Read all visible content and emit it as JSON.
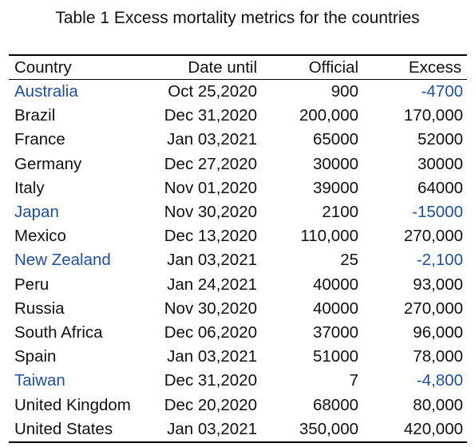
{
  "caption": "Table 1 Excess mortality metrics for the countries",
  "colors": {
    "text": "#111111",
    "highlight": "#1f4e9c",
    "rule": "#000000"
  },
  "table": {
    "headers": {
      "country": "Country",
      "date": "Date until",
      "official": "Official",
      "excess": "Excess"
    },
    "rows": [
      {
        "country": "Australia",
        "date": "Oct 25,2020",
        "official": "900",
        "excess": "-4700",
        "highlight": true
      },
      {
        "country": "Brazil",
        "date": "Dec 31,2020",
        "official": "200,000",
        "excess": "170,000",
        "highlight": false
      },
      {
        "country": "France",
        "date": "Jan 03,2021",
        "official": "65000",
        "excess": "52000",
        "highlight": false
      },
      {
        "country": "Germany",
        "date": "Dec 27,2020",
        "official": "30000",
        "excess": "30000",
        "highlight": false
      },
      {
        "country": "Italy",
        "date": "Nov 01,2020",
        "official": "39000",
        "excess": "64000",
        "highlight": false
      },
      {
        "country": "Japan",
        "date": "Nov 30,2020",
        "official": "2100",
        "excess": "-15000",
        "highlight": true
      },
      {
        "country": "Mexico",
        "date": "Dec 13,2020",
        "official": "110,000",
        "excess": "270,000",
        "highlight": false
      },
      {
        "country": "New Zealand",
        "date": "Jan 03,2021",
        "official": "25",
        "excess": "-2,100",
        "highlight": true
      },
      {
        "country": "Peru",
        "date": "Jan 24,2021",
        "official": "40000",
        "excess": "93,000",
        "highlight": false
      },
      {
        "country": "Russia",
        "date": "Nov 30,2020",
        "official": "40000",
        "excess": "270,000",
        "highlight": false
      },
      {
        "country": "South Africa",
        "date": "Dec 06,2020",
        "official": "37000",
        "excess": "96,000",
        "highlight": false
      },
      {
        "country": "Spain",
        "date": "Jan 03,2021",
        "official": "51000",
        "excess": "78,000",
        "highlight": false
      },
      {
        "country": "Taiwan",
        "date": "Dec 31,2020",
        "official": "7",
        "excess": "-4,800",
        "highlight": true
      },
      {
        "country": "United Kingdom",
        "date": "Dec 20,2020",
        "official": "68000",
        "excess": "80,000",
        "highlight": false
      },
      {
        "country": "United States",
        "date": "Jan 03,2021",
        "official": "350,000",
        "excess": "420,000",
        "highlight": false
      }
    ]
  }
}
